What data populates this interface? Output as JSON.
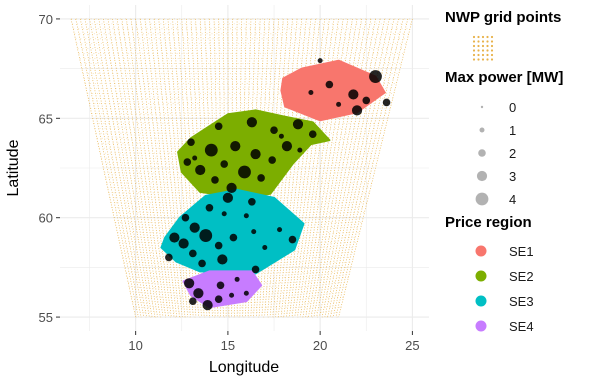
{
  "chart_data": {
    "type": "scatter",
    "xlabel": "Longitude",
    "ylabel": "Latitude",
    "xlim": [
      5.9,
      25.9
    ],
    "ylim": [
      54.3,
      70.7
    ],
    "xticks": [
      10,
      15,
      20,
      25
    ],
    "yticks": [
      55,
      60,
      65,
      70
    ],
    "grid": true,
    "background": "#ffffff",
    "gridline_color": "#ebebeb",
    "nwp_grid": {
      "color": "#e8b24a",
      "top_lat": 70.0,
      "top_lon_range": [
        6.5,
        25.0
      ],
      "bottom_lat": 55.0,
      "bottom_lon_range": [
        10.0,
        21.0
      ],
      "n_lon_lines": 75,
      "n_lat_lines": 61
    },
    "regions": [
      {
        "name": "SE1",
        "color": "#f8766d",
        "polygon": [
          [
            18.0,
            67.0
          ],
          [
            19.0,
            67.5
          ],
          [
            21.0,
            67.9
          ],
          [
            23.0,
            67.1
          ],
          [
            23.5,
            66.3
          ],
          [
            22.0,
            65.3
          ],
          [
            20.0,
            64.9
          ],
          [
            18.1,
            65.6
          ],
          [
            17.9,
            66.4
          ]
        ]
      },
      {
        "name": "SE2",
        "color": "#7cae00",
        "polygon": [
          [
            12.3,
            63.3
          ],
          [
            12.5,
            62.3
          ],
          [
            13.5,
            61.3
          ],
          [
            15.7,
            61.0
          ],
          [
            17.3,
            61.2
          ],
          [
            18.5,
            62.7
          ],
          [
            19.5,
            63.7
          ],
          [
            20.5,
            63.9
          ],
          [
            19.6,
            64.8
          ],
          [
            18.0,
            65.1
          ],
          [
            16.5,
            65.4
          ],
          [
            15.0,
            65.2
          ],
          [
            13.0,
            64.0
          ]
        ]
      },
      {
        "name": "SE3",
        "color": "#00bfc4",
        "polygon": [
          [
            11.4,
            58.5
          ],
          [
            12.2,
            57.8
          ],
          [
            13.5,
            57.3
          ],
          [
            16.5,
            57.2
          ],
          [
            18.6,
            58.4
          ],
          [
            19.1,
            59.7
          ],
          [
            17.5,
            61.0
          ],
          [
            15.5,
            61.4
          ],
          [
            13.8,
            61.1
          ],
          [
            12.4,
            60.0
          ],
          [
            11.6,
            59.0
          ]
        ]
      },
      {
        "name": "SE4",
        "color": "#c77cff",
        "polygon": [
          [
            12.6,
            56.8
          ],
          [
            13.0,
            56.1
          ],
          [
            14.0,
            55.5
          ],
          [
            16.0,
            55.8
          ],
          [
            16.8,
            56.6
          ],
          [
            16.3,
            57.3
          ],
          [
            14.0,
            57.3
          ]
        ]
      }
    ],
    "plants": [
      {
        "lon": 20.0,
        "lat": 67.9,
        "mw": 1
      },
      {
        "lon": 20.5,
        "lat": 66.7,
        "mw": 2
      },
      {
        "lon": 21.8,
        "lat": 66.2,
        "mw": 3
      },
      {
        "lon": 22.5,
        "lat": 65.9,
        "mw": 2
      },
      {
        "lon": 23.0,
        "lat": 67.1,
        "mw": 4
      },
      {
        "lon": 23.6,
        "lat": 65.8,
        "mw": 2
      },
      {
        "lon": 21.0,
        "lat": 65.7,
        "mw": 1
      },
      {
        "lon": 19.5,
        "lat": 66.3,
        "mw": 1
      },
      {
        "lon": 22.0,
        "lat": 65.4,
        "mw": 3
      },
      {
        "lon": 18.8,
        "lat": 64.7,
        "mw": 3
      },
      {
        "lon": 19.6,
        "lat": 64.2,
        "mw": 2
      },
      {
        "lon": 17.5,
        "lat": 64.4,
        "mw": 2
      },
      {
        "lon": 16.3,
        "lat": 64.8,
        "mw": 3
      },
      {
        "lon": 14.5,
        "lat": 64.6,
        "mw": 2
      },
      {
        "lon": 13.0,
        "lat": 63.8,
        "mw": 2
      },
      {
        "lon": 14.1,
        "lat": 63.4,
        "mw": 4
      },
      {
        "lon": 15.4,
        "lat": 63.6,
        "mw": 3
      },
      {
        "lon": 16.5,
        "lat": 63.2,
        "mw": 3
      },
      {
        "lon": 17.4,
        "lat": 62.9,
        "mw": 2
      },
      {
        "lon": 18.2,
        "lat": 63.6,
        "mw": 3
      },
      {
        "lon": 12.8,
        "lat": 62.8,
        "mw": 2
      },
      {
        "lon": 13.5,
        "lat": 62.4,
        "mw": 3
      },
      {
        "lon": 14.8,
        "lat": 62.7,
        "mw": 2
      },
      {
        "lon": 15.9,
        "lat": 62.3,
        "mw": 4
      },
      {
        "lon": 16.8,
        "lat": 62.0,
        "mw": 2
      },
      {
        "lon": 14.3,
        "lat": 61.9,
        "mw": 2
      },
      {
        "lon": 15.2,
        "lat": 61.5,
        "mw": 3
      },
      {
        "lon": 13.2,
        "lat": 63.0,
        "mw": 1
      },
      {
        "lon": 17.9,
        "lat": 64.1,
        "mw": 1
      },
      {
        "lon": 18.9,
        "lat": 63.4,
        "mw": 1
      },
      {
        "lon": 15.0,
        "lat": 61.0,
        "mw": 3
      },
      {
        "lon": 16.3,
        "lat": 60.8,
        "mw": 2
      },
      {
        "lon": 14.0,
        "lat": 60.5,
        "mw": 2
      },
      {
        "lon": 12.7,
        "lat": 60.0,
        "mw": 2
      },
      {
        "lon": 13.2,
        "lat": 59.5,
        "mw": 3
      },
      {
        "lon": 12.1,
        "lat": 59.0,
        "mw": 3
      },
      {
        "lon": 13.8,
        "lat": 59.1,
        "mw": 4
      },
      {
        "lon": 12.6,
        "lat": 58.7,
        "mw": 3
      },
      {
        "lon": 14.5,
        "lat": 58.6,
        "mw": 2
      },
      {
        "lon": 13.1,
        "lat": 58.2,
        "mw": 2
      },
      {
        "lon": 15.3,
        "lat": 59.0,
        "mw": 2
      },
      {
        "lon": 16.4,
        "lat": 59.3,
        "mw": 1
      },
      {
        "lon": 17.8,
        "lat": 59.4,
        "mw": 1
      },
      {
        "lon": 18.5,
        "lat": 58.9,
        "mw": 2
      },
      {
        "lon": 17.0,
        "lat": 58.5,
        "mw": 1
      },
      {
        "lon": 16.0,
        "lat": 60.1,
        "mw": 1
      },
      {
        "lon": 14.8,
        "lat": 60.2,
        "mw": 1
      },
      {
        "lon": 11.8,
        "lat": 58.0,
        "mw": 2
      },
      {
        "lon": 13.6,
        "lat": 57.7,
        "mw": 2
      },
      {
        "lon": 14.7,
        "lat": 57.9,
        "mw": 3
      },
      {
        "lon": 16.5,
        "lat": 57.4,
        "mw": 2
      },
      {
        "lon": 12.9,
        "lat": 56.7,
        "mw": 3
      },
      {
        "lon": 13.4,
        "lat": 56.2,
        "mw": 3
      },
      {
        "lon": 13.9,
        "lat": 55.6,
        "mw": 3
      },
      {
        "lon": 14.5,
        "lat": 55.9,
        "mw": 2
      },
      {
        "lon": 15.2,
        "lat": 56.1,
        "mw": 1
      },
      {
        "lon": 14.6,
        "lat": 56.6,
        "mw": 2
      },
      {
        "lon": 16.0,
        "lat": 56.2,
        "mw": 1
      },
      {
        "lon": 13.1,
        "lat": 55.8,
        "mw": 2
      },
      {
        "lon": 15.5,
        "lat": 56.9,
        "mw": 1
      }
    ],
    "legend": {
      "placement": "right",
      "grid_title": "NWP grid points",
      "size_title": "Max power [MW]",
      "size_items": [
        "0",
        "1",
        "2",
        "3",
        "4"
      ],
      "region_title": "Price region",
      "region_items": [
        "SE1",
        "SE2",
        "SE3",
        "SE4"
      ]
    }
  }
}
